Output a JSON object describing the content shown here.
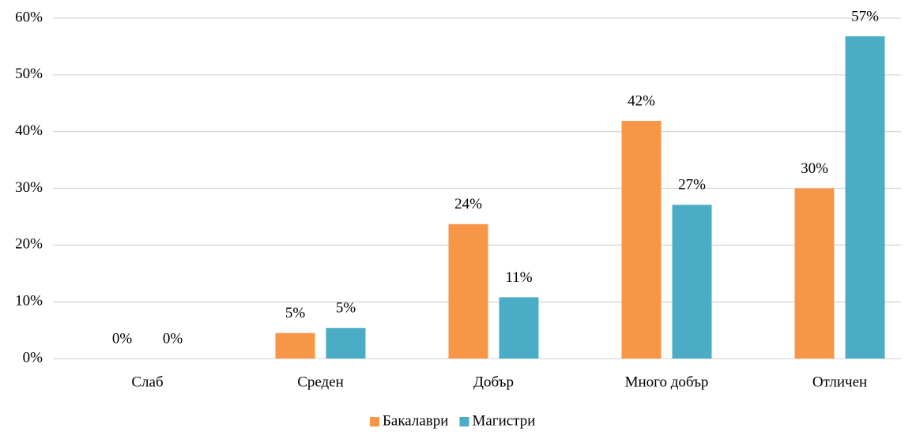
{
  "chart_data": {
    "type": "bar",
    "categories": [
      "Слаб",
      "Среден",
      "Добър",
      "Много добър",
      "Отличен"
    ],
    "series": [
      {
        "name": "Бакалаври",
        "color": "#f79646",
        "values": [
          0,
          4.5,
          23.7,
          41.9,
          30
        ],
        "value_labels": [
          "0%",
          "5%",
          "24%",
          "42%",
          "30%"
        ]
      },
      {
        "name": "Магистри",
        "color": "#4bacc6",
        "values": [
          0,
          5.4,
          10.8,
          27.1,
          56.8
        ],
        "value_labels": [
          "0%",
          "5%",
          "11%",
          "27%",
          "57%"
        ]
      }
    ],
    "ylim": [
      0,
      60
    ],
    "yticks": [
      {
        "value": 0,
        "label": "0%"
      },
      {
        "value": 10,
        "label": "10%"
      },
      {
        "value": 20,
        "label": "20%"
      },
      {
        "value": 30,
        "label": "30%"
      },
      {
        "value": 40,
        "label": "40%"
      },
      {
        "value": 50,
        "label": "50%"
      },
      {
        "value": 60,
        "label": "60%"
      }
    ],
    "grid": true,
    "legend": "bottom"
  }
}
